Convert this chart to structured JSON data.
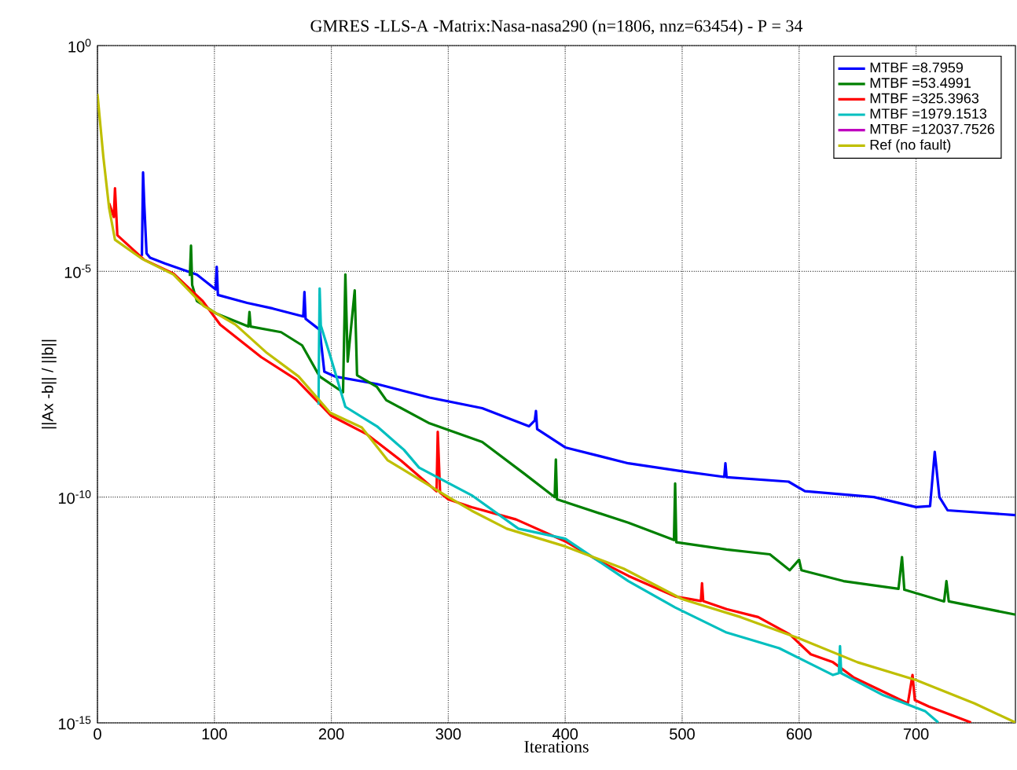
{
  "chart_data": {
    "type": "line",
    "title": "GMRES -LLS-A -Matrix:Nasa-nasa290 (n=1806, nnz=63454) - P = 34",
    "xlabel": "Iterations",
    "ylabel": "||Ax -b|| / ||b||",
    "log": "y",
    "grid": true,
    "legend": "top right",
    "line_style": "solid",
    "marker": "none",
    "xlim": [
      0,
      785
    ],
    "xticks": [
      0,
      100,
      200,
      300,
      400,
      500,
      600,
      700
    ],
    "ylim": [
      1e-15,
      1
    ],
    "yticks": [
      {
        "value": 1,
        "label": "10$^{0}$"
      },
      {
        "value": 1e-05,
        "label": "10$^{-5}$"
      },
      {
        "value": 1e-10,
        "label": "10$^{-10}$"
      },
      {
        "value": 1e-15,
        "label": "10$^{-15}$"
      }
    ],
    "series": [
      {
        "name": "MTBF =8.7959",
        "color": "#0000ff",
        "x": [
          38,
          39,
          40,
          42,
          45,
          58,
          85,
          101,
          102,
          103,
          128,
          150,
          176,
          177,
          178,
          190,
          194,
          203,
          239,
          284,
          329,
          369,
          374,
          375,
          376,
          400,
          454,
          498,
          536,
          537,
          538,
          591,
          605,
          664,
          700,
          712,
          716,
          720,
          727,
          785
        ],
        "values": [
          2.2e-05,
          0.00155,
          0.00032,
          2.5e-05,
          2e-05,
          1.48e-05,
          8.5e-06,
          4e-06,
          1.26e-05,
          3e-06,
          2e-06,
          1.5e-06,
          1e-06,
          3.5e-06,
          8.9e-07,
          5.1e-07,
          6e-08,
          4.7e-08,
          3.2e-08,
          1.6e-08,
          9.3e-09,
          3.7e-09,
          5e-09,
          8.1e-09,
          3.2e-09,
          1.26e-09,
          5.6e-10,
          3.8e-10,
          2.8e-10,
          5.6e-10,
          2.75e-10,
          2.2e-10,
          1.35e-10,
          1e-10,
          6e-11,
          6.3e-11,
          1e-09,
          1e-10,
          5.1e-11,
          4e-11
        ]
      },
      {
        "name": "MTBF =53.4991",
        "color": "#008000",
        "x": [
          79,
          80,
          81,
          85,
          102,
          129,
          130,
          131,
          157,
          175,
          190,
          210,
          212,
          214,
          220,
          222,
          239,
          247,
          284,
          329,
          365,
          391,
          392,
          393,
          454,
          493,
          494,
          495,
          538,
          575,
          592,
          600,
          602,
          638,
          685,
          688,
          690,
          724,
          726,
          728,
          785
        ],
        "values": [
          7.9e-06,
          3.7e-05,
          5e-06,
          2.2e-06,
          1.15e-06,
          6e-07,
          1.26e-06,
          6e-07,
          4.5e-07,
          2.3e-07,
          4.7e-08,
          2.1e-08,
          8.5e-06,
          1e-07,
          3.8e-06,
          5e-08,
          2.75e-08,
          1.4e-08,
          4.3e-09,
          1.66e-09,
          3.3e-10,
          1e-10,
          6.8e-10,
          8.9e-11,
          2.7e-11,
          1.12e-11,
          2e-10,
          1e-11,
          6.9e-12,
          5.4e-12,
          2.4e-12,
          4.1e-12,
          2.4e-12,
          1.38e-12,
          9.3e-13,
          4.7e-12,
          8.9e-13,
          4.9e-13,
          1.38e-12,
          4.9e-13,
          2.5e-13
        ]
      },
      {
        "name": "MTBF =325.3963",
        "color": "#ff0000",
        "x": [
          10,
          14,
          15,
          17,
          40,
          65,
          90,
          105,
          140,
          170,
          200,
          230,
          260,
          290,
          291,
          293,
          300,
          320,
          358,
          400,
          427,
          454,
          494,
          516,
          517,
          518,
          538,
          565,
          592,
          610,
          629,
          647,
          693,
          697,
          699,
          711,
          747
        ],
        "values": [
          0.00032,
          0.00016,
          0.00069,
          6.3e-05,
          1.8e-05,
          8.9e-06,
          2.2e-06,
          6.6e-07,
          1.26e-07,
          4e-08,
          6.3e-09,
          2.5e-09,
          6.3e-10,
          1.35e-10,
          2.8e-09,
          1.26e-10,
          8.9e-11,
          6e-11,
          3.2e-11,
          1.05e-11,
          4.1e-12,
          1.8e-12,
          6.3e-13,
          5e-13,
          1.23e-12,
          5e-13,
          3.3e-13,
          2.2e-13,
          9.1e-14,
          3.3e-14,
          2.2e-14,
          1e-14,
          2.7e-15,
          1.15e-14,
          3.2e-15,
          2.3e-15,
          1.02e-15
        ]
      },
      {
        "name": "MTBF =1979.1513",
        "color": "#00bfbf",
        "x": [
          189,
          190,
          191,
          199,
          212,
          239,
          262,
          275,
          320,
          360,
          400,
          454,
          494,
          538,
          583,
          629,
          634,
          635,
          636,
          672,
          708,
          719
        ],
        "values": [
          1.12e-08,
          4.2e-06,
          6.3e-07,
          1.35e-07,
          1e-08,
          3.7e-09,
          1.12e-09,
          4.5e-10,
          1.1e-10,
          2e-11,
          1.2e-11,
          1.38e-12,
          3.6e-13,
          1e-13,
          4.5e-14,
          1.15e-14,
          1.26e-14,
          5e-14,
          1.26e-14,
          4.1e-15,
          1.8e-15,
          1.02e-15
        ]
      },
      {
        "name": "MTBF =12037.7526",
        "color": "#bf00bf"
      },
      {
        "name": "Ref (no fault)",
        "color": "#bfbf00",
        "x": [
          0,
          5,
          10,
          15,
          38,
          65,
          91,
          118,
          145,
          172,
          199,
          226,
          248,
          300,
          320,
          350,
          400,
          450,
          500,
          550,
          600,
          650,
          700,
          750,
          785
        ],
        "values": [
          0.085,
          0.0035,
          0.00025,
          5e-05,
          1.9e-05,
          8.5e-06,
          1.7e-06,
          6.6e-07,
          1.55e-07,
          4.7e-08,
          7.4e-09,
          3.5e-09,
          6.6e-10,
          1e-10,
          5e-11,
          2e-11,
          8.1e-12,
          2.6e-12,
          5.5e-13,
          2.2e-13,
          7.4e-14,
          2.2e-14,
          8.9e-15,
          2.7e-15,
          1.02e-15
        ]
      }
    ]
  }
}
